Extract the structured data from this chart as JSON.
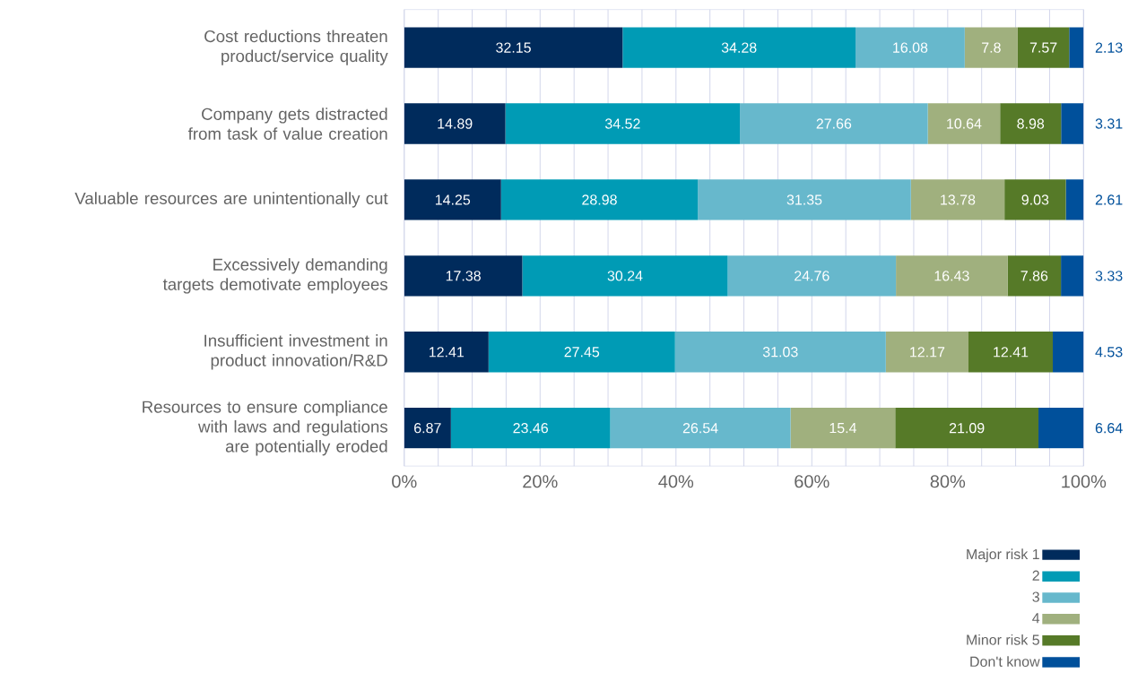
{
  "chart_data": {
    "type": "bar",
    "orientation": "horizontal",
    "stacked": true,
    "data_labels": true,
    "grid": "x",
    "legend": "bottom right",
    "categories": [
      "Cost reductions threaten product/service quality",
      "Company gets distracted from task of value creation",
      "Valuable resources are unintentionally cut",
      "Excessively demanding targets demotivate employees",
      "Insufficient investment in product innovation/R&D",
      "Resources to ensure compliance with laws and regulations are potentially eroded"
    ],
    "series": [
      {
        "name": "Major risk 1",
        "color": "#002b5c",
        "values": [
          32.15,
          14.89,
          14.25,
          17.38,
          12.41,
          6.87
        ]
      },
      {
        "name": "2",
        "color": "#009bb5",
        "values": [
          34.28,
          34.52,
          28.98,
          30.24,
          27.45,
          23.46
        ]
      },
      {
        "name": "3",
        "color": "#67b8cc",
        "values": [
          16.08,
          27.66,
          31.35,
          24.76,
          31.03,
          26.54
        ]
      },
      {
        "name": "4",
        "color": "#a0b07e",
        "values": [
          7.8,
          10.64,
          13.78,
          16.43,
          12.17,
          15.4
        ]
      },
      {
        "name": "Minor risk 5",
        "color": "#567a28",
        "values": [
          7.57,
          8.98,
          9.03,
          7.86,
          12.41,
          21.09
        ]
      },
      {
        "name": "Don't know",
        "color": "#00509b",
        "values": [
          2.13,
          3.31,
          2.61,
          3.33,
          4.53,
          6.64
        ]
      }
    ],
    "xlim": [
      0,
      100
    ],
    "xticks": [
      {
        "value": 0,
        "label": "0%"
      },
      {
        "value": 5,
        "label": null
      },
      {
        "value": 10,
        "label": null
      },
      {
        "value": 15,
        "label": null
      },
      {
        "value": 20,
        "label": "20%"
      },
      {
        "value": 25,
        "label": null
      },
      {
        "value": 30,
        "label": null
      },
      {
        "value": 35,
        "label": null
      },
      {
        "value": 40,
        "label": "40%"
      },
      {
        "value": 45,
        "label": null
      },
      {
        "value": 50,
        "label": null
      },
      {
        "value": 55,
        "label": null
      },
      {
        "value": 60,
        "label": "60%"
      },
      {
        "value": 65,
        "label": null
      },
      {
        "value": 70,
        "label": null
      },
      {
        "value": 75,
        "label": null
      },
      {
        "value": 80,
        "label": "80%"
      },
      {
        "value": 85,
        "label": null
      },
      {
        "value": 90,
        "label": null
      },
      {
        "value": 95,
        "label": null
      },
      {
        "value": 100,
        "label": "100%"
      }
    ]
  }
}
